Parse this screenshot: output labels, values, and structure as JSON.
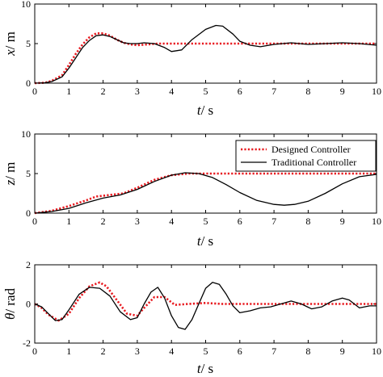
{
  "colors": {
    "designed": "#e8191f",
    "traditional": "#000000"
  },
  "legend": {
    "designed": "Designed Controller",
    "traditional": "Traditional Controller",
    "placement": "inside upper right of middle panel"
  },
  "chart_data": [
    {
      "type": "line",
      "ylabel_var": "x",
      "ylabel_unit": "/ m",
      "xlabel_var": "t",
      "xlabel_unit": "/ s",
      "xlim": [
        0,
        10
      ],
      "ylim": [
        0,
        10
      ],
      "xticks": [
        "0",
        "1",
        "2",
        "3",
        "4",
        "5",
        "6",
        "7",
        "8",
        "9",
        "10"
      ],
      "yticks": [
        "0",
        "5",
        "10"
      ],
      "series": [
        {
          "name": "Designed Controller",
          "style": "dotted",
          "x": [
            0,
            0.3,
            0.5,
            0.8,
            1.0,
            1.2,
            1.4,
            1.6,
            1.8,
            2.0,
            2.2,
            2.4,
            2.6,
            2.8,
            3.0,
            3.3,
            3.6,
            4.0,
            5.0,
            6.0,
            7.0,
            8.0,
            9.0,
            10.0
          ],
          "y": [
            0,
            0.05,
            0.3,
            1.0,
            2.3,
            3.7,
            4.9,
            5.8,
            6.3,
            6.3,
            6.0,
            5.5,
            5.1,
            4.9,
            4.8,
            4.9,
            5.0,
            5.0,
            5.0,
            5.0,
            5.0,
            5.0,
            5.0,
            5.0
          ]
        },
        {
          "name": "Traditional Controller",
          "style": "solid",
          "x": [
            0,
            0.3,
            0.5,
            0.8,
            1.0,
            1.2,
            1.4,
            1.6,
            1.8,
            2.0,
            2.2,
            2.4,
            2.6,
            2.8,
            3.0,
            3.2,
            3.5,
            3.8,
            4.0,
            4.3,
            4.6,
            5.0,
            5.3,
            5.5,
            5.8,
            6.0,
            6.3,
            6.6,
            7.0,
            7.5,
            8.0,
            8.5,
            9.0,
            9.5,
            10.0
          ],
          "y": [
            0,
            0.05,
            0.2,
            0.8,
            1.9,
            3.2,
            4.5,
            5.4,
            6.0,
            6.1,
            5.9,
            5.5,
            5.1,
            5.0,
            5.0,
            5.1,
            5.0,
            4.5,
            4.0,
            4.2,
            5.5,
            6.8,
            7.3,
            7.2,
            6.2,
            5.3,
            4.8,
            4.6,
            4.9,
            5.1,
            4.9,
            5.0,
            5.1,
            5.0,
            4.8
          ]
        }
      ]
    },
    {
      "type": "line",
      "ylabel_var": "z",
      "ylabel_unit": "/ m",
      "xlabel_var": "t",
      "xlabel_unit": "/ s",
      "xlim": [
        0,
        10
      ],
      "ylim": [
        0,
        10
      ],
      "xticks": [
        "0",
        "1",
        "2",
        "3",
        "4",
        "5",
        "6",
        "7",
        "8",
        "9",
        "10"
      ],
      "yticks": [
        "0",
        "5",
        "10"
      ],
      "series": [
        {
          "name": "Designed Controller",
          "style": "dotted",
          "x": [
            0,
            0.5,
            1.0,
            1.5,
            1.8,
            2.2,
            2.6,
            3.0,
            3.5,
            4.0,
            4.5,
            5.0,
            6.0,
            7.0,
            8.0,
            9.0,
            10.0
          ],
          "y": [
            0,
            0.3,
            0.9,
            1.6,
            2.1,
            2.3,
            2.5,
            3.2,
            4.2,
            4.8,
            5.0,
            5.0,
            5.0,
            5.0,
            5.0,
            5.0,
            5.0
          ]
        },
        {
          "name": "Traditional Controller",
          "style": "solid",
          "x": [
            0,
            0.5,
            1.0,
            1.5,
            2.0,
            2.5,
            3.0,
            3.5,
            4.0,
            4.4,
            4.8,
            5.2,
            5.6,
            6.0,
            6.5,
            7.0,
            7.3,
            7.6,
            8.0,
            8.5,
            9.0,
            9.5,
            10.0
          ],
          "y": [
            0,
            0.2,
            0.6,
            1.3,
            1.9,
            2.3,
            3.0,
            4.0,
            4.8,
            5.1,
            5.0,
            4.5,
            3.6,
            2.6,
            1.6,
            1.1,
            1.0,
            1.1,
            1.5,
            2.5,
            3.7,
            4.6,
            4.9
          ]
        }
      ]
    },
    {
      "type": "line",
      "ylabel_var": "θ",
      "ylabel_unit": "/ rad",
      "xlabel_var": "t",
      "xlabel_unit": "/ s",
      "xlim": [
        0,
        10
      ],
      "ylim": [
        -2,
        2
      ],
      "xticks": [
        "0",
        "1",
        "2",
        "3",
        "4",
        "5",
        "6",
        "7",
        "8",
        "9",
        "10"
      ],
      "yticks": [
        "-2",
        "0",
        "2"
      ],
      "series": [
        {
          "name": "Designed Controller",
          "style": "dotted",
          "x": [
            0,
            0.2,
            0.4,
            0.7,
            1.0,
            1.3,
            1.6,
            1.9,
            2.1,
            2.4,
            2.7,
            3.0,
            3.2,
            3.5,
            3.8,
            4.1,
            4.5,
            5.0,
            5.5,
            6.0,
            7.0,
            8.0,
            9.0,
            10.0
          ],
          "y": [
            0,
            -0.2,
            -0.55,
            -0.85,
            -0.5,
            0.3,
            0.9,
            1.1,
            0.9,
            0.2,
            -0.5,
            -0.6,
            -0.2,
            0.35,
            0.35,
            -0.05,
            0,
            0.05,
            0,
            0,
            0,
            0,
            0,
            0
          ]
        },
        {
          "name": "Traditional Controller",
          "style": "solid",
          "x": [
            0,
            0.2,
            0.4,
            0.6,
            0.8,
            1.0,
            1.3,
            1.6,
            1.9,
            2.2,
            2.5,
            2.8,
            3.0,
            3.2,
            3.4,
            3.6,
            3.8,
            4.0,
            4.2,
            4.4,
            4.6,
            4.8,
            5.0,
            5.2,
            5.4,
            5.6,
            5.8,
            6.0,
            6.3,
            6.6,
            6.9,
            7.2,
            7.5,
            7.8,
            8.1,
            8.4,
            8.7,
            9.0,
            9.2,
            9.5,
            9.8,
            10.0
          ],
          "y": [
            0,
            -0.15,
            -0.5,
            -0.85,
            -0.8,
            -0.3,
            0.5,
            0.85,
            0.8,
            0.4,
            -0.4,
            -0.8,
            -0.7,
            0.0,
            0.6,
            0.85,
            0.3,
            -0.6,
            -1.2,
            -1.3,
            -0.8,
            0.0,
            0.8,
            1.1,
            1.0,
            0.5,
            -0.1,
            -0.45,
            -0.35,
            -0.2,
            -0.15,
            0.0,
            0.15,
            0.0,
            -0.25,
            -0.15,
            0.15,
            0.3,
            0.2,
            -0.2,
            -0.1,
            -0.1
          ]
        }
      ]
    }
  ]
}
